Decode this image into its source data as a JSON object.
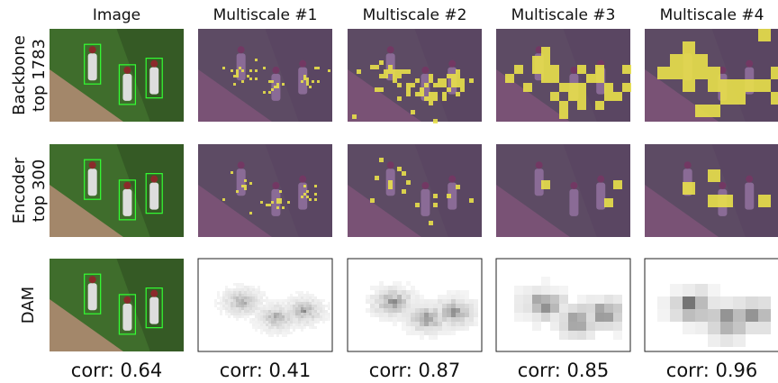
{
  "columns": [
    "Image",
    "Multiscale #1",
    "Multiscale #2",
    "Multiscale #3",
    "Multiscale #4"
  ],
  "rows": [
    {
      "label": [
        "Backbone",
        "top 1783"
      ]
    },
    {
      "label": [
        "Encoder",
        "top 300"
      ]
    },
    {
      "label": [
        "DAM"
      ]
    }
  ],
  "correlations": [
    "corr: 0.64",
    "corr: 0.41",
    "corr: 0.87",
    "corr: 0.85",
    "corr: 0.96"
  ]
}
